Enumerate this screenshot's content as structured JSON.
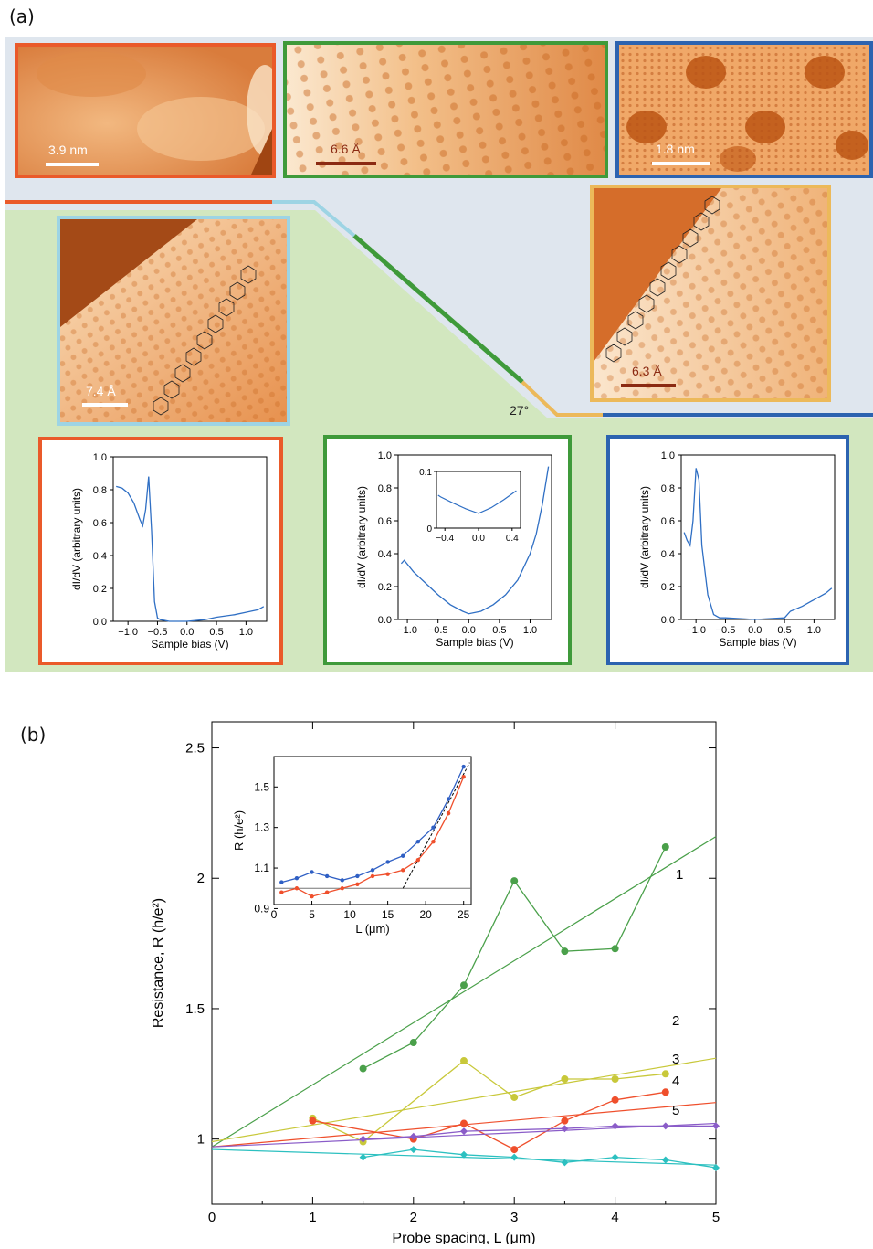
{
  "figure": {
    "label_a": "(a)",
    "label_b": "(b)"
  },
  "panel_a": {
    "colors": {
      "orange": "#ea5a2a",
      "green": "#3f9a3a",
      "blue": "#2c63b0",
      "cyan": "#9dd4e4",
      "yellow": "#ecb95a",
      "bg_blue": "#dfe6ee",
      "bg_green": "#d2e7bf",
      "curve": "#2f6fc4"
    },
    "scale_bars": {
      "orange": "3.9 nm",
      "green": "6.6 Å",
      "blue": "1.8 nm",
      "cyan": "7.4 Å",
      "yellow": "6.3 Å"
    },
    "angle_label": "27°",
    "spectra": [
      {
        "frame": "orange",
        "ylabel": "dI/dV (arbitrary units)",
        "xlabel": "Sample bias (V)",
        "xticks": [
          "−1.0",
          "−0.5",
          "0.0",
          "0.5",
          "1.0"
        ],
        "yticks": [
          "0.0",
          "0.2",
          "0.4",
          "0.6",
          "0.8",
          "1.0"
        ]
      },
      {
        "frame": "green",
        "ylabel": "dI/dV (arbitrary units)",
        "xlabel": "Sample bias (V)",
        "xticks": [
          "−1.0",
          "−0.5",
          "0.0",
          "0.5",
          "1.0"
        ],
        "yticks": [
          "0.0",
          "0.2",
          "0.4",
          "0.6",
          "0.8",
          "1.0"
        ],
        "inset_xticks": [
          "−0.4",
          "0.0",
          "0.4"
        ],
        "inset_yticks": [
          "0",
          "0.1"
        ]
      },
      {
        "frame": "blue",
        "ylabel": "dI/dV (arbitrary units)",
        "xlabel": "Sample bias (V)",
        "xticks": [
          "−1.0",
          "−0.5",
          "0.0",
          "0.5",
          "1.0"
        ],
        "yticks": [
          "0.0",
          "0.2",
          "0.4",
          "0.6",
          "0.8",
          "1.0"
        ]
      }
    ]
  },
  "chart_data": [
    {
      "type": "line",
      "panel": "a-orange",
      "xlabel": "Sample bias (V)",
      "ylabel": "dI/dV (arbitrary units)",
      "xlim": [
        -1.25,
        1.35
      ],
      "ylim": [
        0,
        1.0
      ],
      "series": [
        {
          "x": [
            -1.2,
            -1.1,
            -1.0,
            -0.9,
            -0.8,
            -0.75,
            -0.7,
            -0.65,
            -0.6,
            -0.55,
            -0.5,
            -0.45,
            -0.3,
            0.0,
            0.3,
            0.5,
            0.8,
            1.0,
            1.2,
            1.3
          ],
          "y": [
            0.82,
            0.81,
            0.78,
            0.72,
            0.62,
            0.58,
            0.68,
            0.88,
            0.55,
            0.12,
            0.02,
            0.01,
            0.0,
            0.0,
            0.01,
            0.025,
            0.04,
            0.055,
            0.07,
            0.09
          ]
        }
      ]
    },
    {
      "type": "line",
      "panel": "a-green",
      "xlabel": "Sample bias (V)",
      "ylabel": "dI/dV (arbitrary units)",
      "xlim": [
        -1.15,
        1.35
      ],
      "ylim": [
        0,
        1.0
      ],
      "series": [
        {
          "x": [
            -1.1,
            -1.05,
            -0.9,
            -0.7,
            -0.5,
            -0.3,
            -0.1,
            0.0,
            0.2,
            0.4,
            0.6,
            0.8,
            1.0,
            1.1,
            1.2,
            1.3
          ],
          "y": [
            0.34,
            0.36,
            0.29,
            0.22,
            0.15,
            0.09,
            0.05,
            0.035,
            0.05,
            0.09,
            0.15,
            0.24,
            0.4,
            0.52,
            0.7,
            0.93
          ]
        }
      ],
      "inset": {
        "xlim": [
          -0.5,
          0.5
        ],
        "ylim": [
          0,
          0.1
        ],
        "series": [
          {
            "x": [
              -0.48,
              -0.45,
              -0.3,
              -0.15,
              0.0,
              0.15,
              0.3,
              0.45
            ],
            "y": [
              0.058,
              0.055,
              0.044,
              0.034,
              0.026,
              0.036,
              0.05,
              0.066
            ]
          }
        ]
      }
    },
    {
      "type": "line",
      "panel": "a-blue",
      "xlabel": "Sample bias (V)",
      "ylabel": "dI/dV (arbitrary units)",
      "xlim": [
        -1.25,
        1.35
      ],
      "ylim": [
        0,
        1.0
      ],
      "series": [
        {
          "x": [
            -1.2,
            -1.15,
            -1.1,
            -1.05,
            -1.0,
            -0.95,
            -0.9,
            -0.8,
            -0.7,
            -0.6,
            -0.5,
            0.0,
            0.5,
            0.6,
            0.8,
            1.0,
            1.2,
            1.3
          ],
          "y": [
            0.53,
            0.48,
            0.45,
            0.6,
            0.92,
            0.85,
            0.45,
            0.15,
            0.03,
            0.01,
            0.01,
            0.0,
            0.01,
            0.05,
            0.08,
            0.12,
            0.16,
            0.19
          ]
        }
      ]
    },
    {
      "type": "scatter",
      "panel": "b",
      "xlabel": "Probe spacing, L (μm)",
      "ylabel": "Resistance, R (h/e²)",
      "xlim": [
        0,
        5
      ],
      "ylim": [
        0.75,
        2.6
      ],
      "xticks": [
        "0",
        "1",
        "2",
        "3",
        "4",
        "5"
      ],
      "yticks": [
        "1",
        "1.5",
        "2",
        "2.5"
      ],
      "series": [
        {
          "name": "1",
          "color": "#4aa04a",
          "x": [
            1.5,
            2,
            2.5,
            3,
            3.5,
            4,
            4.5
          ],
          "y": [
            1.27,
            1.37,
            1.59,
            1.99,
            1.72,
            1.73,
            2.12
          ],
          "fit": [
            [
              0,
              0.97
            ],
            [
              5,
              2.16
            ]
          ]
        },
        {
          "name": "2",
          "color": "#c8c83a",
          "x": [
            1,
            1.5,
            2.5,
            3,
            3.5,
            4,
            4.5
          ],
          "y": [
            1.08,
            0.99,
            1.3,
            1.16,
            1.23,
            1.23,
            1.25
          ],
          "fit": [
            [
              0,
              0.99
            ],
            [
              5,
              1.31
            ]
          ]
        },
        {
          "name": "3",
          "color": "#ef4f2c",
          "x": [
            1,
            2,
            2.5,
            3,
            3.5,
            4,
            4.5
          ],
          "y": [
            1.07,
            1.0,
            1.06,
            0.96,
            1.07,
            1.15,
            1.18
          ],
          "fit": [
            [
              0,
              0.97
            ],
            [
              5,
              1.14
            ]
          ]
        },
        {
          "name": "4",
          "color": "#8a5cc8",
          "x": [
            1.5,
            2,
            2.5,
            3.5,
            4,
            4.5,
            5
          ],
          "y": [
            1.0,
            1.01,
            1.03,
            1.04,
            1.05,
            1.05,
            1.05
          ],
          "fit": [
            [
              0,
              0.97
            ],
            [
              5,
              1.06
            ]
          ]
        },
        {
          "name": "5",
          "color": "#2cc0c0",
          "x": [
            1.5,
            2,
            2.5,
            3,
            3.5,
            4,
            4.5,
            5
          ],
          "y": [
            0.93,
            0.96,
            0.94,
            0.93,
            0.91,
            0.93,
            0.92,
            0.89
          ],
          "fit": [
            [
              0,
              0.96
            ],
            [
              5,
              0.9
            ]
          ]
        }
      ],
      "inset": {
        "xlabel": "L (μm)",
        "ylabel": "R (h/e²)",
        "xlim": [
          0,
          26
        ],
        "ylim": [
          0.92,
          1.65
        ],
        "xticks": [
          "0",
          "5",
          "10",
          "15",
          "20",
          "25"
        ],
        "yticks": [
          "0.9",
          "1.1",
          "1.3",
          "1.5"
        ],
        "series": [
          {
            "color": "#2f5fc4",
            "x": [
              1,
              3,
              5,
              7,
              9,
              11,
              13,
              15,
              17,
              19,
              21,
              23,
              25
            ],
            "y": [
              1.03,
              1.05,
              1.08,
              1.06,
              1.04,
              1.06,
              1.09,
              1.13,
              1.16,
              1.23,
              1.3,
              1.44,
              1.6
            ]
          },
          {
            "color": "#ef4f2c",
            "x": [
              1,
              3,
              5,
              7,
              9,
              11,
              13,
              15,
              17,
              19,
              21,
              23,
              25
            ],
            "y": [
              0.98,
              1.0,
              0.96,
              0.98,
              1.0,
              1.02,
              1.06,
              1.07,
              1.09,
              1.14,
              1.23,
              1.37,
              1.55
            ]
          }
        ],
        "reference_line_y": 1.0
      }
    }
  ]
}
